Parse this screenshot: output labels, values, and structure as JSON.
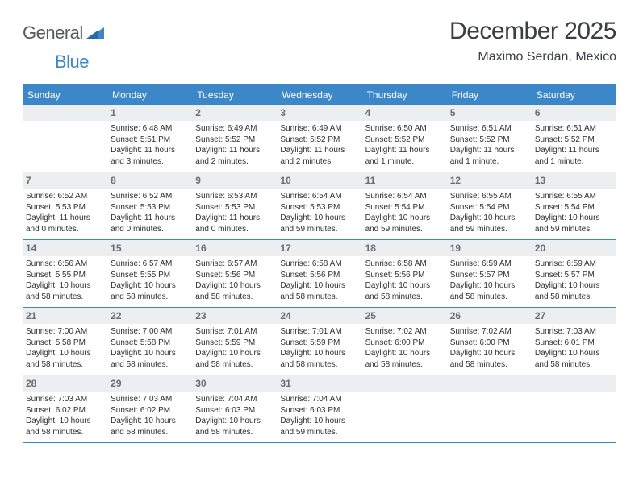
{
  "brand": {
    "part1": "General",
    "part2": "Blue"
  },
  "title": "December 2025",
  "location": "Maximo Serdan, Mexico",
  "colors": {
    "accent": "#3c87c7",
    "headerText": "#ffffff",
    "dayNumBg": "#eceef0",
    "dayNumText": "#6a6d71",
    "bodyText": "#2f2f2f",
    "titleText": "#3b3f44"
  },
  "dayNames": [
    "Sunday",
    "Monday",
    "Tuesday",
    "Wednesday",
    "Thursday",
    "Friday",
    "Saturday"
  ],
  "weeks": [
    [
      {
        "n": "",
        "lines": [
          "",
          "",
          "",
          ""
        ]
      },
      {
        "n": "1",
        "lines": [
          "Sunrise: 6:48 AM",
          "Sunset: 5:51 PM",
          "Daylight: 11 hours",
          "and 3 minutes."
        ]
      },
      {
        "n": "2",
        "lines": [
          "Sunrise: 6:49 AM",
          "Sunset: 5:52 PM",
          "Daylight: 11 hours",
          "and 2 minutes."
        ]
      },
      {
        "n": "3",
        "lines": [
          "Sunrise: 6:49 AM",
          "Sunset: 5:52 PM",
          "Daylight: 11 hours",
          "and 2 minutes."
        ]
      },
      {
        "n": "4",
        "lines": [
          "Sunrise: 6:50 AM",
          "Sunset: 5:52 PM",
          "Daylight: 11 hours",
          "and 1 minute."
        ]
      },
      {
        "n": "5",
        "lines": [
          "Sunrise: 6:51 AM",
          "Sunset: 5:52 PM",
          "Daylight: 11 hours",
          "and 1 minute."
        ]
      },
      {
        "n": "6",
        "lines": [
          "Sunrise: 6:51 AM",
          "Sunset: 5:52 PM",
          "Daylight: 11 hours",
          "and 1 minute."
        ]
      }
    ],
    [
      {
        "n": "7",
        "lines": [
          "Sunrise: 6:52 AM",
          "Sunset: 5:53 PM",
          "Daylight: 11 hours",
          "and 0 minutes."
        ]
      },
      {
        "n": "8",
        "lines": [
          "Sunrise: 6:52 AM",
          "Sunset: 5:53 PM",
          "Daylight: 11 hours",
          "and 0 minutes."
        ]
      },
      {
        "n": "9",
        "lines": [
          "Sunrise: 6:53 AM",
          "Sunset: 5:53 PM",
          "Daylight: 11 hours",
          "and 0 minutes."
        ]
      },
      {
        "n": "10",
        "lines": [
          "Sunrise: 6:54 AM",
          "Sunset: 5:53 PM",
          "Daylight: 10 hours",
          "and 59 minutes."
        ]
      },
      {
        "n": "11",
        "lines": [
          "Sunrise: 6:54 AM",
          "Sunset: 5:54 PM",
          "Daylight: 10 hours",
          "and 59 minutes."
        ]
      },
      {
        "n": "12",
        "lines": [
          "Sunrise: 6:55 AM",
          "Sunset: 5:54 PM",
          "Daylight: 10 hours",
          "and 59 minutes."
        ]
      },
      {
        "n": "13",
        "lines": [
          "Sunrise: 6:55 AM",
          "Sunset: 5:54 PM",
          "Daylight: 10 hours",
          "and 59 minutes."
        ]
      }
    ],
    [
      {
        "n": "14",
        "lines": [
          "Sunrise: 6:56 AM",
          "Sunset: 5:55 PM",
          "Daylight: 10 hours",
          "and 58 minutes."
        ]
      },
      {
        "n": "15",
        "lines": [
          "Sunrise: 6:57 AM",
          "Sunset: 5:55 PM",
          "Daylight: 10 hours",
          "and 58 minutes."
        ]
      },
      {
        "n": "16",
        "lines": [
          "Sunrise: 6:57 AM",
          "Sunset: 5:56 PM",
          "Daylight: 10 hours",
          "and 58 minutes."
        ]
      },
      {
        "n": "17",
        "lines": [
          "Sunrise: 6:58 AM",
          "Sunset: 5:56 PM",
          "Daylight: 10 hours",
          "and 58 minutes."
        ]
      },
      {
        "n": "18",
        "lines": [
          "Sunrise: 6:58 AM",
          "Sunset: 5:56 PM",
          "Daylight: 10 hours",
          "and 58 minutes."
        ]
      },
      {
        "n": "19",
        "lines": [
          "Sunrise: 6:59 AM",
          "Sunset: 5:57 PM",
          "Daylight: 10 hours",
          "and 58 minutes."
        ]
      },
      {
        "n": "20",
        "lines": [
          "Sunrise: 6:59 AM",
          "Sunset: 5:57 PM",
          "Daylight: 10 hours",
          "and 58 minutes."
        ]
      }
    ],
    [
      {
        "n": "21",
        "lines": [
          "Sunrise: 7:00 AM",
          "Sunset: 5:58 PM",
          "Daylight: 10 hours",
          "and 58 minutes."
        ]
      },
      {
        "n": "22",
        "lines": [
          "Sunrise: 7:00 AM",
          "Sunset: 5:58 PM",
          "Daylight: 10 hours",
          "and 58 minutes."
        ]
      },
      {
        "n": "23",
        "lines": [
          "Sunrise: 7:01 AM",
          "Sunset: 5:59 PM",
          "Daylight: 10 hours",
          "and 58 minutes."
        ]
      },
      {
        "n": "24",
        "lines": [
          "Sunrise: 7:01 AM",
          "Sunset: 5:59 PM",
          "Daylight: 10 hours",
          "and 58 minutes."
        ]
      },
      {
        "n": "25",
        "lines": [
          "Sunrise: 7:02 AM",
          "Sunset: 6:00 PM",
          "Daylight: 10 hours",
          "and 58 minutes."
        ]
      },
      {
        "n": "26",
        "lines": [
          "Sunrise: 7:02 AM",
          "Sunset: 6:00 PM",
          "Daylight: 10 hours",
          "and 58 minutes."
        ]
      },
      {
        "n": "27",
        "lines": [
          "Sunrise: 7:03 AM",
          "Sunset: 6:01 PM",
          "Daylight: 10 hours",
          "and 58 minutes."
        ]
      }
    ],
    [
      {
        "n": "28",
        "lines": [
          "Sunrise: 7:03 AM",
          "Sunset: 6:02 PM",
          "Daylight: 10 hours",
          "and 58 minutes."
        ]
      },
      {
        "n": "29",
        "lines": [
          "Sunrise: 7:03 AM",
          "Sunset: 6:02 PM",
          "Daylight: 10 hours",
          "and 58 minutes."
        ]
      },
      {
        "n": "30",
        "lines": [
          "Sunrise: 7:04 AM",
          "Sunset: 6:03 PM",
          "Daylight: 10 hours",
          "and 58 minutes."
        ]
      },
      {
        "n": "31",
        "lines": [
          "Sunrise: 7:04 AM",
          "Sunset: 6:03 PM",
          "Daylight: 10 hours",
          "and 59 minutes."
        ]
      },
      {
        "n": "",
        "lines": [
          "",
          "",
          "",
          ""
        ]
      },
      {
        "n": "",
        "lines": [
          "",
          "",
          "",
          ""
        ]
      },
      {
        "n": "",
        "lines": [
          "",
          "",
          "",
          ""
        ]
      }
    ]
  ]
}
